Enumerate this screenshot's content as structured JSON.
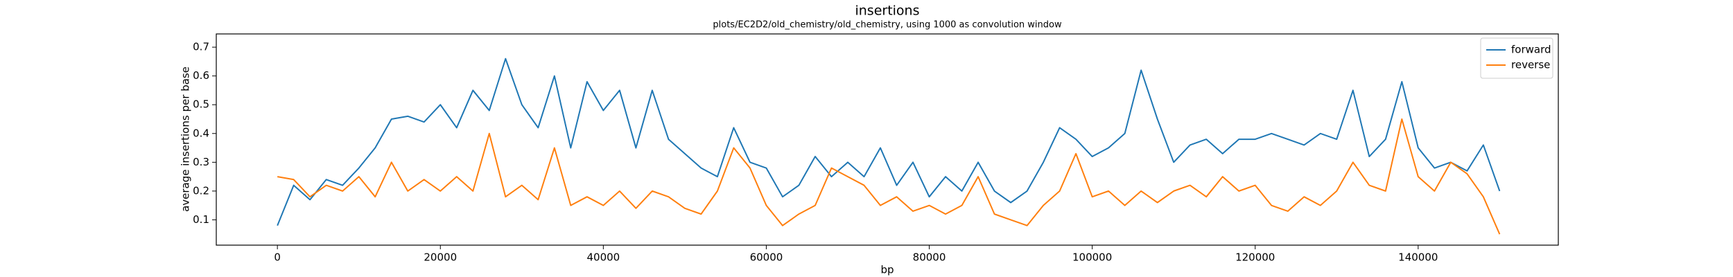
{
  "chart_data": {
    "type": "line",
    "title": "insertions",
    "subtitle": "plots/EC2D2/old_chemistry/old_chemistry, using 1000 as convolution window",
    "x_label": "bp",
    "y_label": "average insertions per base",
    "x": [
      0,
      2000,
      4000,
      6000,
      8000,
      10000,
      12000,
      14000,
      16000,
      18000,
      20000,
      22000,
      24000,
      26000,
      28000,
      30000,
      32000,
      34000,
      36000,
      38000,
      40000,
      42000,
      44000,
      46000,
      48000,
      50000,
      52000,
      54000,
      56000,
      58000,
      60000,
      62000,
      64000,
      66000,
      68000,
      70000,
      72000,
      74000,
      76000,
      78000,
      80000,
      82000,
      84000,
      86000,
      88000,
      90000,
      92000,
      94000,
      96000,
      98000,
      100000,
      102000,
      104000,
      106000,
      108000,
      110000,
      112000,
      114000,
      116000,
      118000,
      120000,
      122000,
      124000,
      126000,
      128000,
      130000,
      132000,
      134000,
      136000,
      138000,
      140000,
      142000,
      144000,
      146000,
      148000,
      150000
    ],
    "series": [
      {
        "name": "forward",
        "color": "#1f77b4",
        "values": [
          0.08,
          0.22,
          0.17,
          0.24,
          0.22,
          0.28,
          0.35,
          0.45,
          0.46,
          0.44,
          0.5,
          0.42,
          0.55,
          0.48,
          0.66,
          0.5,
          0.42,
          0.6,
          0.35,
          0.58,
          0.48,
          0.55,
          0.35,
          0.55,
          0.38,
          0.33,
          0.28,
          0.25,
          0.42,
          0.3,
          0.28,
          0.18,
          0.22,
          0.32,
          0.25,
          0.3,
          0.25,
          0.35,
          0.22,
          0.3,
          0.18,
          0.25,
          0.2,
          0.3,
          0.2,
          0.16,
          0.2,
          0.3,
          0.42,
          0.38,
          0.32,
          0.35,
          0.4,
          0.62,
          0.45,
          0.3,
          0.36,
          0.38,
          0.33,
          0.38,
          0.38,
          0.4,
          0.38,
          0.36,
          0.4,
          0.38,
          0.55,
          0.32,
          0.38,
          0.58,
          0.35,
          0.28,
          0.3,
          0.27,
          0.36,
          0.2
        ]
      },
      {
        "name": "reverse",
        "color": "#ff7f0e",
        "values": [
          0.25,
          0.24,
          0.18,
          0.22,
          0.2,
          0.25,
          0.18,
          0.3,
          0.2,
          0.24,
          0.2,
          0.25,
          0.2,
          0.4,
          0.18,
          0.22,
          0.17,
          0.35,
          0.15,
          0.18,
          0.15,
          0.2,
          0.14,
          0.2,
          0.18,
          0.14,
          0.12,
          0.2,
          0.35,
          0.28,
          0.15,
          0.08,
          0.12,
          0.15,
          0.28,
          0.25,
          0.22,
          0.15,
          0.18,
          0.13,
          0.15,
          0.12,
          0.15,
          0.25,
          0.12,
          0.1,
          0.08,
          0.15,
          0.2,
          0.33,
          0.18,
          0.2,
          0.15,
          0.2,
          0.16,
          0.2,
          0.22,
          0.18,
          0.25,
          0.2,
          0.22,
          0.15,
          0.13,
          0.18,
          0.15,
          0.2,
          0.3,
          0.22,
          0.2,
          0.45,
          0.25,
          0.2,
          0.3,
          0.26,
          0.18,
          0.05
        ]
      }
    ],
    "xlim": [
      -7500,
      157200
    ],
    "ylim": [
      0.012,
      0.746
    ],
    "xticks": [
      0,
      20000,
      40000,
      60000,
      80000,
      100000,
      120000,
      140000
    ],
    "yticks": [
      0.1,
      0.2,
      0.3,
      0.4,
      0.5,
      0.6,
      0.7
    ],
    "grid": false,
    "legend": "upper right"
  }
}
